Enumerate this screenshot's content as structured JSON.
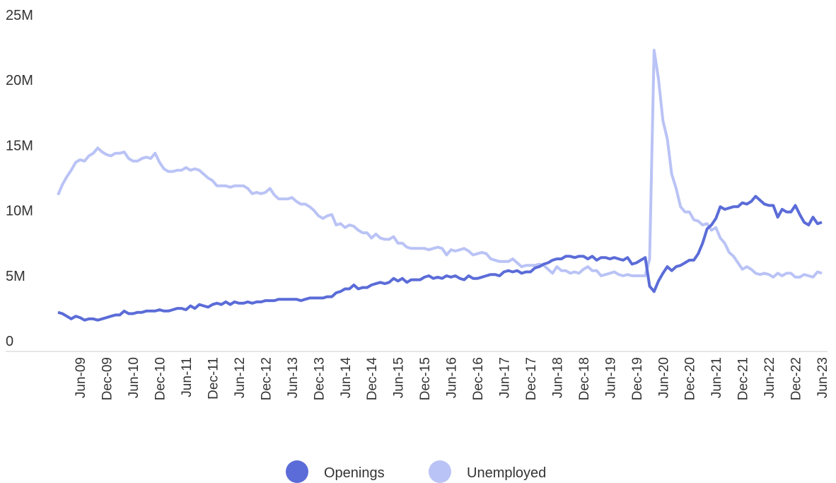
{
  "chart_data": {
    "type": "line",
    "categories": [
      null,
      null,
      null,
      null,
      null,
      "Jun-09",
      null,
      null,
      null,
      null,
      null,
      "Dec-09",
      null,
      null,
      null,
      null,
      null,
      "Jun-10",
      null,
      null,
      null,
      null,
      null,
      "Dec-10",
      null,
      null,
      null,
      null,
      null,
      "Jun-11",
      null,
      null,
      null,
      null,
      null,
      "Dec-11",
      null,
      null,
      null,
      null,
      null,
      "Jun-12",
      null,
      null,
      null,
      null,
      null,
      "Dec-12",
      null,
      null,
      null,
      null,
      null,
      "Jun-13",
      null,
      null,
      null,
      null,
      null,
      "Dec-13",
      null,
      null,
      null,
      null,
      null,
      "Jun-14",
      null,
      null,
      null,
      null,
      null,
      "Dec-14",
      null,
      null,
      null,
      null,
      null,
      "Jun-15",
      null,
      null,
      null,
      null,
      null,
      "Dec-15",
      null,
      null,
      null,
      null,
      null,
      "Jun-16",
      null,
      null,
      null,
      null,
      null,
      "Dec-16",
      null,
      null,
      null,
      null,
      null,
      "Jun-17",
      null,
      null,
      null,
      null,
      null,
      "Dec-17",
      null,
      null,
      null,
      null,
      null,
      "Jun-18",
      null,
      null,
      null,
      null,
      null,
      "Dec-18",
      null,
      null,
      null,
      null,
      null,
      "Jun-19",
      null,
      null,
      null,
      null,
      null,
      "Dec-19",
      null,
      null,
      null,
      null,
      null,
      "Jun-20",
      null,
      null,
      null,
      null,
      null,
      "Dec-20",
      null,
      null,
      null,
      null,
      null,
      "Jun-21",
      null,
      null,
      null,
      null,
      null,
      "Dec-21",
      null,
      null,
      null,
      null,
      null,
      "Jun-22",
      null,
      null,
      null,
      null,
      null,
      "Dec-22",
      null,
      null,
      null,
      null,
      null,
      "Jun-23"
    ],
    "series": [
      {
        "name": "Openings",
        "color": "#5b6cd8",
        "values": [
          3.0,
          2.9,
          2.7,
          2.5,
          2.7,
          2.6,
          2.4,
          2.5,
          2.5,
          2.4,
          2.5,
          2.6,
          2.7,
          2.8,
          2.8,
          3.1,
          2.9,
          2.9,
          3.0,
          3.0,
          3.1,
          3.1,
          3.1,
          3.2,
          3.1,
          3.1,
          3.2,
          3.3,
          3.3,
          3.2,
          3.5,
          3.3,
          3.6,
          3.5,
          3.4,
          3.6,
          3.7,
          3.6,
          3.8,
          3.6,
          3.8,
          3.7,
          3.7,
          3.8,
          3.7,
          3.8,
          3.8,
          3.9,
          3.9,
          3.9,
          4.0,
          4.0,
          4.0,
          4.0,
          4.0,
          3.9,
          4.0,
          4.1,
          4.1,
          4.1,
          4.1,
          4.2,
          4.2,
          4.5,
          4.6,
          4.8,
          4.8,
          5.1,
          4.8,
          4.9,
          4.9,
          5.1,
          5.2,
          5.3,
          5.2,
          5.3,
          5.6,
          5.4,
          5.6,
          5.3,
          5.5,
          5.5,
          5.5,
          5.7,
          5.8,
          5.6,
          5.7,
          5.6,
          5.8,
          5.7,
          5.8,
          5.6,
          5.5,
          5.8,
          5.6,
          5.6,
          5.7,
          5.8,
          5.9,
          5.9,
          5.8,
          6.1,
          6.2,
          6.1,
          6.2,
          6.0,
          6.1,
          6.1,
          6.4,
          6.5,
          6.7,
          6.8,
          7.0,
          7.1,
          7.1,
          7.3,
          7.3,
          7.2,
          7.3,
          7.3,
          7.1,
          7.3,
          7.0,
          7.2,
          7.2,
          7.1,
          7.2,
          7.1,
          7.0,
          7.2,
          6.7,
          6.8,
          7.0,
          7.2,
          5.0,
          4.6,
          5.4,
          6.0,
          6.5,
          6.2,
          6.5,
          6.6,
          6.8,
          7.0,
          7.0,
          7.5,
          8.3,
          9.4,
          9.7,
          10.2,
          11.1,
          10.9,
          11.0,
          11.1,
          11.1,
          11.4,
          11.3,
          11.5,
          11.9,
          11.6,
          11.3,
          11.2,
          11.2,
          10.3,
          10.9,
          10.7,
          10.7,
          11.2,
          10.5,
          9.9,
          9.7,
          10.3,
          9.8,
          9.9
        ]
      },
      {
        "name": "Unemployed",
        "color": "#bac3f5",
        "values": [
          12.0,
          12.8,
          13.4,
          13.9,
          14.5,
          14.7,
          14.6,
          15.0,
          15.2,
          15.6,
          15.3,
          15.1,
          15.0,
          15.2,
          15.2,
          15.3,
          14.8,
          14.6,
          14.6,
          14.8,
          14.9,
          14.8,
          15.2,
          14.5,
          14.0,
          13.8,
          13.8,
          13.9,
          13.9,
          14.1,
          13.9,
          14.0,
          13.9,
          13.6,
          13.3,
          13.1,
          12.7,
          12.7,
          12.7,
          12.6,
          12.7,
          12.7,
          12.7,
          12.5,
          12.1,
          12.2,
          12.1,
          12.2,
          12.5,
          12.0,
          11.7,
          11.7,
          11.7,
          11.8,
          11.5,
          11.3,
          11.3,
          11.1,
          10.8,
          10.4,
          10.2,
          10.4,
          10.5,
          9.7,
          9.8,
          9.5,
          9.7,
          9.6,
          9.3,
          9.1,
          9.1,
          8.7,
          9.0,
          8.7,
          8.6,
          8.6,
          8.8,
          8.3,
          8.3,
          8.0,
          7.9,
          7.9,
          7.9,
          7.9,
          7.8,
          7.9,
          8.0,
          7.9,
          7.4,
          7.8,
          7.7,
          7.8,
          7.9,
          7.7,
          7.4,
          7.5,
          7.6,
          7.5,
          7.1,
          7.0,
          6.9,
          6.9,
          6.9,
          7.1,
          6.8,
          6.5,
          6.6,
          6.6,
          6.6,
          6.7,
          6.6,
          6.3,
          6.0,
          6.5,
          6.2,
          6.2,
          6.0,
          6.1,
          6.0,
          6.3,
          6.5,
          6.2,
          6.2,
          5.8,
          5.9,
          6.0,
          6.1,
          5.9,
          5.8,
          5.9,
          5.8,
          5.8,
          5.8,
          5.8,
          7.1,
          23.1,
          20.9,
          17.7,
          16.3,
          13.6,
          12.5,
          11.1,
          10.7,
          10.7,
          10.1,
          10.0,
          9.7,
          9.8,
          9.3,
          9.5,
          8.7,
          8.3,
          7.6,
          7.3,
          6.8,
          6.3,
          6.5,
          6.3,
          6.0,
          5.9,
          6.0,
          5.9,
          5.7,
          6.0,
          5.8,
          6.0,
          6.0,
          5.7,
          5.7,
          5.9,
          5.8,
          5.7,
          6.1,
          6.0
        ]
      }
    ],
    "ylim": [
      0,
      25
    ],
    "yticks": [
      0,
      {
        "value": 5,
        "label": "5M"
      },
      {
        "value": 10,
        "label": "10M"
      },
      {
        "value": 15,
        "label": "15M"
      },
      {
        "value": 20,
        "label": "20M"
      },
      {
        "value": 25,
        "label": "25M"
      }
    ],
    "grid": false
  }
}
